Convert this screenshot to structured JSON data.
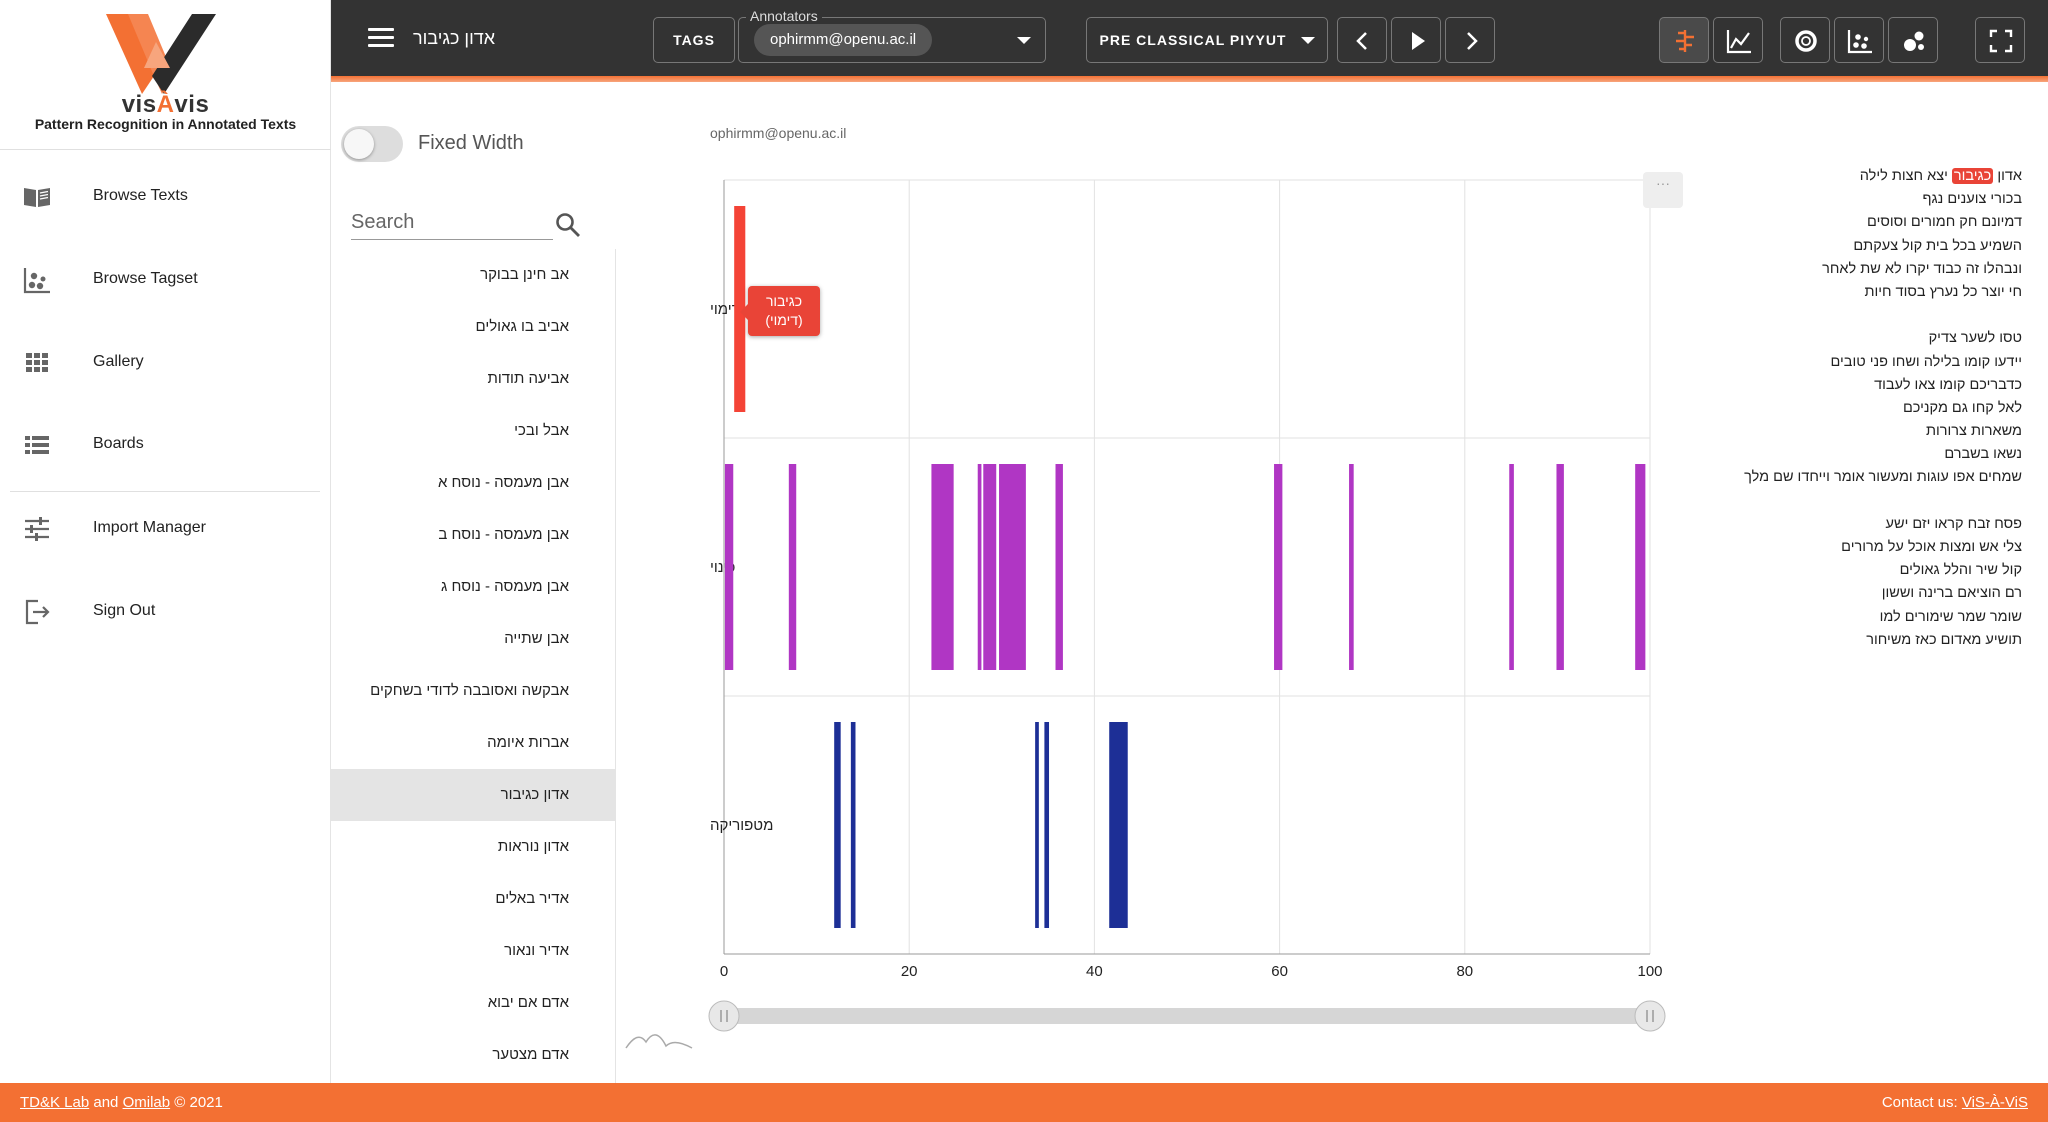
{
  "app": {
    "logo_letters": "vis",
    "logo_accent": "À",
    "logo_suffix": "vis",
    "tagline": "Pattern Recognition in Annotated Texts"
  },
  "sidebar": {
    "items": [
      {
        "label": "Browse Texts",
        "icon": "book-open-icon"
      },
      {
        "label": "Browse Tagset",
        "icon": "tagset-dots-icon"
      },
      {
        "label": "Gallery",
        "icon": "grid-icon"
      },
      {
        "label": "Boards",
        "icon": "list-board-icon"
      },
      {
        "label": "Import Manager",
        "icon": "sliders-icon"
      },
      {
        "label": "Sign Out",
        "icon": "sign-out-icon"
      }
    ]
  },
  "topbar": {
    "title": "אדון כגיבור",
    "tags_label": "TAGS",
    "annotators_legend": "Annotators",
    "annotator_chip": "ophirmm@openu.ac.il",
    "corpus_label": "PRE CLASSICAL PIYYUT",
    "icons": [
      "chevron-left-icon",
      "play-icon",
      "chevron-right-icon",
      "tag-timeline-icon",
      "line-chart-icon",
      "donut-chart-icon",
      "scatter-icon",
      "bubbles-icon",
      "fullscreen-icon"
    ]
  },
  "list_pane": {
    "fixed_width_label": "Fixed Width",
    "fixed_width_on": false,
    "search_placeholder": "Search",
    "items": [
      "אב חינן בבוקר",
      "אביב בו גאולים",
      "אביעה תודות",
      "אבל ובכי",
      "אבן מעמסה - נוסח א",
      "אבן מעמסה - נוסח ב",
      "אבן מעמסה - נוסח ג",
      "אבן שתייה",
      "אבקשה ואסובבה לדודי בשחקים",
      "אברות איומה",
      "אדון כגיבור",
      "אדון נוראות",
      "אדיר באלים",
      "אדיר ונאור",
      "אדם אם יבוא",
      "אדם מצטער"
    ],
    "selected": "אדון כגיבור"
  },
  "chart_panel": {
    "annotator": "ophirmm@openu.ac.il",
    "menu_label": "···",
    "tooltip_line1": "כגיבור",
    "tooltip_line2": "(דימוי)"
  },
  "chart_data": {
    "type": "timeline",
    "xlim": [
      0,
      100
    ],
    "xticks": [
      0,
      20,
      40,
      60,
      80,
      100
    ],
    "grid": true,
    "range_slider": [
      0,
      100
    ],
    "rows": [
      {
        "label": "דימוי",
        "color": "#f44336",
        "spans": [
          [
            1.1,
            2.3
          ]
        ]
      },
      {
        "label": "כינוי",
        "color": "#b036c4",
        "spans": [
          [
            0.1,
            1.0
          ],
          [
            7.0,
            7.8
          ],
          [
            22.4,
            24.8
          ],
          [
            27.4,
            27.8
          ],
          [
            28.0,
            29.4
          ],
          [
            29.7,
            32.6
          ],
          [
            35.8,
            36.6
          ],
          [
            59.4,
            60.3
          ],
          [
            67.5,
            68.0
          ],
          [
            84.8,
            85.3
          ],
          [
            89.9,
            90.7
          ],
          [
            98.4,
            99.5
          ]
        ]
      },
      {
        "label": "מטפוריקה",
        "color": "#1d2f96",
        "spans": [
          [
            11.9,
            12.6
          ],
          [
            13.7,
            14.2
          ],
          [
            33.6,
            34.0
          ],
          [
            34.6,
            35.1
          ],
          [
            41.6,
            43.6
          ]
        ]
      }
    ]
  },
  "text_pane": {
    "lines": [
      {
        "pre": "אדון ",
        "hl": "כגיבור",
        "post": " יצא חצות לילה"
      },
      {
        "text": "בכורי צוענים נגף"
      },
      {
        "text": "דמיונם חק חמורים וסוסים"
      },
      {
        "text": "השמיע בכל בית קול צעקתם"
      },
      {
        "text": "ונבהלו זה כבוד יקרו לא שת לאחר"
      },
      {
        "text": "חי יוצר כל נערץ בסוד חיות"
      },
      {
        "text": ""
      },
      {
        "text": "טסו לשער צדיק"
      },
      {
        "text": "יידעו קומו בלילה ושחו פני טובים"
      },
      {
        "text": "כדבריכם קומו צאו לעבוד"
      },
      {
        "text": "לאל קחו גם מקניכם"
      },
      {
        "text": "משארות צרורות"
      },
      {
        "text": "נשאו בשברם"
      },
      {
        "text": "שמחים אפו עוגות ומעשור אומר וייחדו שם מלך"
      },
      {
        "text": ""
      },
      {
        "text": "פסח זבח קראו יזם ישע"
      },
      {
        "text": "צלי אש ומצות אוכל על מרורים"
      },
      {
        "text": "קול שיר והלל גאולים"
      },
      {
        "text": "רם הוציאם ברינה וששון"
      },
      {
        "text": "שומר שמר שימורים למו"
      },
      {
        "text": "תושיע מאדום כאז משיחור"
      }
    ]
  },
  "footer": {
    "lab1": "TD&K Lab",
    "and": " and ",
    "lab2": "Omilab",
    "copyright": " © 2021",
    "contact_prefix": "Contact us: ",
    "contact_link": "ViS-À-ViS"
  },
  "colors": {
    "accent": "#f37033",
    "topbar": "#333333",
    "simile": "#f44336",
    "epithet": "#b036c4",
    "metaphor": "#1d2f96"
  }
}
